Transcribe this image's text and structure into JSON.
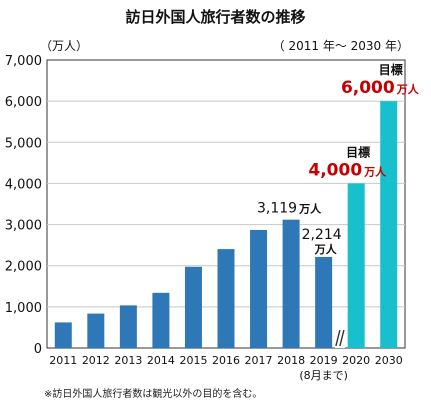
{
  "chart_data": {
    "type": "bar",
    "title": "訪日外国人旅行者数の推移",
    "unit_label": "（万人）",
    "period_label": "（ 2011 年〜 2030 年）",
    "footnote": "※訪日外国人旅行者数は観光以外の目的を含む。",
    "ylim": [
      0,
      7000
    ],
    "yticks": [
      "0",
      "1,000",
      "2,000",
      "3,000",
      "4,000",
      "5,000",
      "6,000",
      "7,000"
    ],
    "grid": true,
    "categories": [
      "2011",
      "2012",
      "2013",
      "2014",
      "2015",
      "2016",
      "2017",
      "2018",
      "2019",
      "2020",
      "2030"
    ],
    "category_sublabels": [
      "",
      "",
      "",
      "",
      "",
      "",
      "",
      "",
      "(8月まで)",
      "",
      ""
    ],
    "values": [
      622,
      836,
      1036,
      1341,
      1974,
      2404,
      2869,
      3119,
      2214,
      4000,
      6000
    ],
    "bar_kinds": [
      "actual",
      "actual",
      "actual",
      "actual",
      "actual",
      "actual",
      "actual",
      "actual",
      "actual",
      "target",
      "target"
    ],
    "axis_break_after": "2019",
    "annotations": [
      {
        "category": "2018",
        "value_text": "3,119",
        "unit": "万人",
        "prefix": ""
      },
      {
        "category": "2019",
        "value_text": "2,214",
        "unit": "万人",
        "prefix": ""
      },
      {
        "category": "2020",
        "value_text": "4,000",
        "unit": "万人",
        "prefix": "目標"
      },
      {
        "category": "2030",
        "value_text": "6,000",
        "unit": "万人",
        "prefix": "目標"
      }
    ],
    "colors": {
      "actual": "#2e78b7",
      "target": "#17c0cc",
      "target_label": "#c40000",
      "grid": "#c8c8c8",
      "axis": "#333333"
    }
  }
}
